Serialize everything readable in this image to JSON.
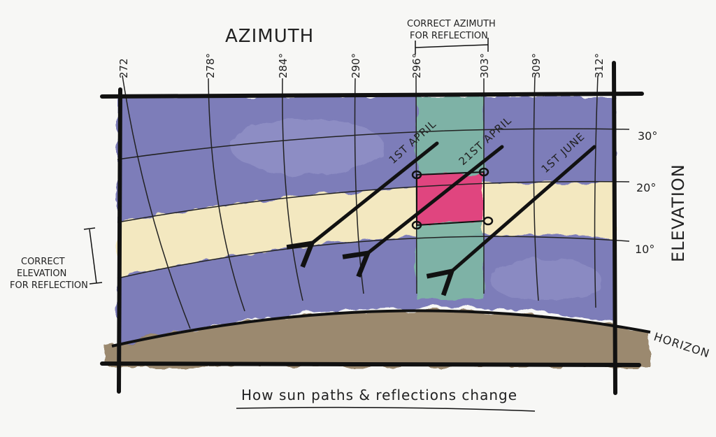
{
  "diagram": {
    "title": "How sun paths & reflections change",
    "axis_top_label": "AZIMUTH",
    "axis_right_label": "ELEVATION",
    "horizon_label": "HORIZON",
    "azimuth_ticks": [
      "272",
      "278°",
      "284°",
      "290°",
      "296°",
      "303°",
      "309°",
      "312°"
    ],
    "elevation_ticks": [
      "30°",
      "20°",
      "10°"
    ],
    "correct_azimuth_label": [
      "CORRECT AZIMUTH",
      "FOR REFLECTION"
    ],
    "correct_elevation_label": [
      "CORRECT",
      "ELEVATION",
      "FOR REFLECTION"
    ],
    "sun_paths": [
      {
        "label": "1ST APRIL"
      },
      {
        "label": "21ST APRIL"
      },
      {
        "label": "1ST JUNE"
      }
    ]
  },
  "colors": {
    "sky": "#6f6fb3",
    "elevation_band": "#f3e8c0",
    "azimuth_band": "#7fb5a6",
    "reflection_zone": "#e0457f",
    "ground": "#8c7658",
    "ink": "#111111"
  }
}
